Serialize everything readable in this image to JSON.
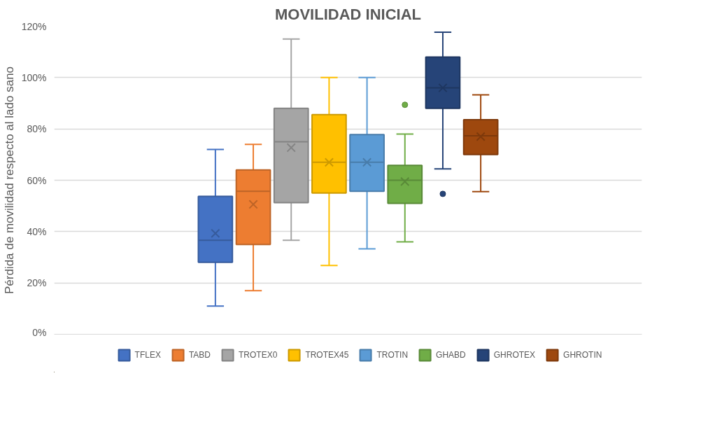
{
  "chart_data": {
    "type": "box",
    "title": "MOVILIDAD INICIAL",
    "ylabel": "Pérdida de movilidad respecto al lado sano",
    "categories": [
      null
    ],
    "series": [
      {
        "name": "TFLEX",
        "color": "#4472c4",
        "boxes": [
          {
            "low": 11,
            "q1": 28,
            "median": 36.6,
            "q3": 53.7,
            "high": 72,
            "mean": 39.3
          }
        ]
      },
      {
        "name": "TABD",
        "color": "#ed7d31",
        "boxes": [
          {
            "low": 17,
            "q1": 35,
            "median": 55.7,
            "q3": 64,
            "high": 74,
            "mean": 50.6
          }
        ]
      },
      {
        "name": "TROTEX0",
        "color": "#a5a5a5",
        "boxes": [
          {
            "low": 36.6,
            "q1": 51.3,
            "median": 75,
            "q3": 88,
            "high": 115,
            "mean": 72.7
          }
        ]
      },
      {
        "name": "TROTEX45",
        "color": "#ffc000",
        "boxes": [
          {
            "low": 26.8,
            "q1": 55,
            "median": 67,
            "q3": 85.6,
            "high": 100,
            "mean": 67
          }
        ]
      },
      {
        "name": "TROTIN",
        "color": "#5b9bd5",
        "boxes": [
          {
            "low": 33.3,
            "q1": 55.7,
            "median": 67,
            "q3": 77.8,
            "high": 100,
            "mean": 67
          }
        ]
      },
      {
        "name": "GHABD",
        "color": "#70ad47",
        "boxes": [
          {
            "low": 36,
            "q1": 51,
            "median": 60,
            "q3": 65.8,
            "high": 78,
            "mean": 59.5,
            "outliers": [
              89.4
            ]
          }
        ]
      },
      {
        "name": "GHROTEX",
        "color": "#264478",
        "boxes": [
          {
            "low": 64.4,
            "q1": 88,
            "median": 96,
            "q3": 108,
            "high": 117.7,
            "mean": 96,
            "outliers": [
              54.7
            ]
          }
        ]
      },
      {
        "name": "GHROTIN",
        "color": "#9e480e",
        "boxes": [
          {
            "low": 55.6,
            "q1": 70,
            "median": 77.3,
            "q3": 83.6,
            "high": 93.3,
            "mean": 77
          }
        ]
      }
    ],
    "ylim": [
      0,
      120
    ],
    "yticks": [
      {
        "value": 0,
        "label": "0%"
      },
      {
        "value": 20,
        "label": "20%"
      },
      {
        "value": 40,
        "label": "40%"
      },
      {
        "value": 60,
        "label": "60%"
      },
      {
        "value": 80,
        "label": "80%"
      },
      {
        "value": 100,
        "label": "100%"
      },
      {
        "value": 120,
        "label": "120%"
      }
    ],
    "tick_labels": "y",
    "grid": "y",
    "legend": "bottom",
    "marker": "circle"
  }
}
